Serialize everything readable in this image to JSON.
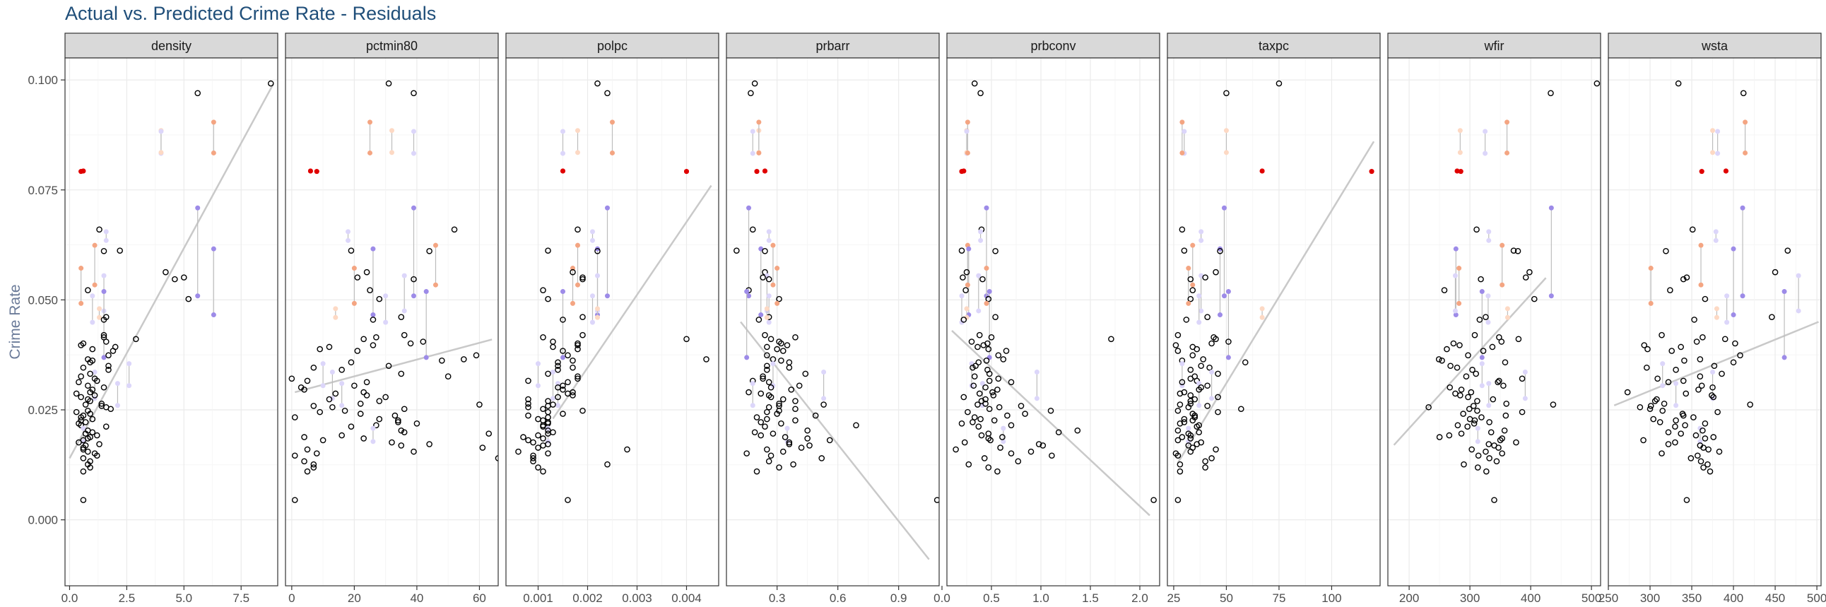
{
  "chart_data": {
    "type": "scatter",
    "title": "Actual vs. Predicted Crime Rate - Residuals",
    "xlabel": "",
    "ylabel": "Crime Rate",
    "ylim": [
      -0.015,
      0.105
    ],
    "y_ticks": [
      0.0,
      0.025,
      0.05,
      0.075,
      0.1
    ],
    "y_tick_labels": [
      "0.000",
      "0.025",
      "0.050",
      "0.075",
      "0.100"
    ],
    "grid": true,
    "highlight_colors": {
      "strong_positive": "#e00000",
      "positive": "#f4a582",
      "light_positive": "#fdd9c4",
      "negative": "#9d8be8",
      "light_negative": "#dcd6fa"
    },
    "fit_line_color": "#c9c9c9",
    "points_actual_crime_rate": [
      0.0992,
      0.097,
      0.0883,
      0.0835,
      0.0834,
      0.0793,
      0.0792,
      0.0709,
      0.066,
      0.0655,
      0.0616,
      0.0612,
      0.0611,
      0.0563,
      0.0555,
      0.0551,
      0.0547,
      0.0534,
      0.0522,
      0.0519,
      0.0509,
      0.0502,
      0.0492,
      0.0461,
      0.046,
      0.0455,
      0.042,
      0.0415,
      0.0411,
      0.0405,
      0.0401,
      0.0397,
      0.0393,
      0.0388,
      0.0384,
      0.0374,
      0.0365,
      0.0362,
      0.0358,
      0.0355,
      0.035,
      0.0346,
      0.0341,
      0.0336,
      0.0332,
      0.0326,
      0.0321,
      0.0316,
      0.0313,
      0.031,
      0.0305,
      0.0301,
      0.0296,
      0.029,
      0.0287,
      0.0283,
      0.0279,
      0.0274,
      0.027,
      0.0264,
      0.0262,
      0.0259,
      0.0256,
      0.0252,
      0.0248,
      0.0245,
      0.0241,
      0.0237,
      0.0233,
      0.0229,
      0.0226,
      0.0222,
      0.0219,
      0.0215,
      0.0212,
      0.0208,
      0.0203,
      0.0199,
      0.0196,
      0.0192,
      0.0188,
      0.0185,
      0.0181,
      0.0176,
      0.0172,
      0.0169,
      0.0164,
      0.016,
      0.0155,
      0.0151,
      0.0146,
      0.014,
      0.0133,
      0.0126,
      0.0119,
      0.011,
      0.0045
    ],
    "panels": [
      {
        "name": "density",
        "xlim": [
          -0.2,
          9.1
        ],
        "x_ticks": [
          0,
          2.5,
          5,
          7.5
        ],
        "x_tick_labels": [
          "0.0",
          "2.5",
          "5.0",
          "7.5"
        ],
        "fit_line": [
          [
            0.0,
            0.014
          ],
          [
            8.9,
            0.099
          ]
        ],
        "x": [
          8.8,
          5.6,
          4.0,
          4.0,
          6.3,
          0.6,
          0.5,
          5.6,
          1.3,
          1.6,
          6.3,
          2.2,
          1.5,
          4.2,
          1.5,
          5.0,
          4.6,
          1.1,
          0.8,
          1.5,
          1.0,
          5.2,
          0.5,
          1.6,
          1.3,
          1.5,
          1.5,
          1.5,
          2.9,
          1.6,
          0.6,
          0.5,
          2.0,
          1.0,
          1.9,
          1.7,
          0.8,
          1.0,
          0.9,
          2.6,
          1.7,
          0.6,
          1.7,
          1.1,
          0.9,
          0.5,
          1.1,
          1.2,
          0.4,
          2.1,
          0.8,
          1.5,
          1.0,
          0.9,
          0.3,
          1.1,
          0.5,
          0.8,
          0.9,
          1.4,
          0.7,
          1.4,
          1.6,
          1.8,
          0.8,
          0.3,
          0.9,
          0.6,
          0.5,
          1.0,
          0.5,
          0.7,
          0.4,
          0.5,
          1.6,
          0.6,
          0.8,
          1.0,
          0.7,
          1.2,
          0.9,
          0.8,
          0.6,
          0.4,
          1.3,
          0.7,
          0.6,
          0.6,
          0.8,
          1.1,
          1.2,
          0.6,
          0.9,
          0.8,
          0.9,
          0.6,
          0.6
        ]
      },
      {
        "name": "pctmin80",
        "xlim": [
          -2,
          66
        ],
        "x_ticks": [
          0,
          20,
          40,
          60
        ],
        "x_tick_labels": [
          "0",
          "20",
          "40",
          "60"
        ],
        "fit_line": [
          [
            1.0,
            0.029
          ],
          [
            64.0,
            0.041
          ]
        ],
        "x": [
          31.0,
          39.0,
          39.0,
          32.0,
          25.0,
          6.0,
          8.0,
          39.0,
          52.0,
          18.0,
          26.0,
          19.0,
          44.0,
          24.0,
          36.0,
          21.0,
          39.0,
          46.0,
          25.0,
          43.0,
          30.0,
          28.0,
          20.0,
          35.0,
          14.0,
          26.0,
          36.0,
          27.0,
          23.0,
          42.0,
          38.0,
          26.0,
          12.0,
          9.0,
          21.0,
          59.0,
          55.0,
          48.0,
          19.0,
          10.0,
          31.0,
          7.0,
          16.0,
          13.0,
          35.0,
          50.0,
          0.0,
          5.0,
          24.0,
          16.0,
          20.0,
          3.0,
          4.0,
          23.0,
          14.0,
          24.0,
          30.0,
          12.0,
          28.0,
          22.0,
          60.0,
          7.0,
          13.0,
          36.0,
          17.0,
          9.0,
          22.0,
          33.0,
          1.0,
          28.0,
          34.0,
          34.0,
          40.0,
          27.0,
          19.0,
          26.0,
          35.0,
          36.0,
          63.0,
          16.0,
          4.0,
          23.0,
          10.0,
          32.0,
          44.0,
          35.0,
          61.0,
          5.0,
          39.0,
          8.0,
          1.0,
          66.0,
          4.0,
          7.0,
          7.0,
          5.0,
          1.0
        ]
      },
      {
        "name": "polpc",
        "xlim": [
          0.00035,
          0.00465
        ],
        "x_ticks": [
          0.001,
          0.002,
          0.003,
          0.004
        ],
        "x_tick_labels": [
          "0.001",
          "0.002",
          "0.003",
          "0.004"
        ],
        "fit_line": [
          [
            0.0013,
            0.023
          ],
          [
            0.0045,
            0.076
          ]
        ],
        "x": [
          0.0022,
          0.0024,
          0.0015,
          0.0018,
          0.0025,
          0.0015,
          0.004,
          0.0024,
          0.0018,
          0.0021,
          0.0022,
          0.0012,
          0.0022,
          0.0017,
          0.0022,
          0.0019,
          0.0019,
          0.0018,
          0.0011,
          0.0015,
          0.0021,
          0.0012,
          0.0017,
          0.0019,
          0.0022,
          0.0015,
          0.0019,
          0.0011,
          0.004,
          0.0013,
          0.0018,
          0.0018,
          0.0013,
          0.0018,
          0.0015,
          0.0016,
          0.0044,
          0.0017,
          0.0014,
          0.001,
          0.0014,
          0.0017,
          0.0014,
          0.0013,
          0.0012,
          0.0018,
          0.0018,
          0.0008,
          0.0016,
          0.0014,
          0.0015,
          0.0014,
          0.0015,
          0.0017,
          0.0016,
          0.0017,
          0.0014,
          0.0008,
          0.0012,
          0.0008,
          0.0013,
          0.0012,
          0.0008,
          0.0011,
          0.0019,
          0.0012,
          0.0015,
          0.0008,
          0.0012,
          0.001,
          0.0011,
          0.0012,
          0.0012,
          0.0011,
          0.0011,
          0.0012,
          0.0012,
          0.0013,
          0.0012,
          0.001,
          0.0007,
          0.0011,
          0.0008,
          0.0009,
          0.0012,
          0.0011,
          0.001,
          0.0028,
          0.0006,
          0.0012,
          0.0009,
          0.0009,
          0.0009,
          0.0024,
          0.001,
          0.0011,
          0.0016
        ]
      },
      {
        "name": "prbarr",
        "xlim": [
          0.05,
          1.1
        ],
        "x_ticks": [
          0.3,
          0.6,
          0.9
        ],
        "x_tick_labels": [
          "0.3",
          "0.6",
          "0.9"
        ],
        "fit_line": [
          [
            0.12,
            0.045
          ],
          [
            1.05,
            -0.009
          ]
        ],
        "x": [
          0.19,
          0.17,
          0.18,
          0.21,
          0.21,
          0.24,
          0.2,
          0.16,
          0.18,
          0.26,
          0.22,
          0.1,
          0.24,
          0.24,
          0.25,
          0.23,
          0.26,
          0.28,
          0.16,
          0.15,
          0.26,
          0.31,
          0.3,
          0.26,
          0.25,
          0.21,
          0.24,
          0.39,
          0.27,
          0.31,
          0.32,
          0.35,
          0.25,
          0.3,
          0.33,
          0.25,
          0.28,
          0.32,
          0.36,
          0.28,
          0.25,
          0.36,
          0.25,
          0.53,
          0.44,
          0.23,
          0.23,
          0.18,
          0.26,
          0.18,
          0.41,
          0.27,
          0.37,
          0.16,
          0.22,
          0.26,
          0.27,
          0.33,
          0.39,
          0.31,
          0.53,
          0.31,
          0.26,
          0.39,
          0.31,
          0.25,
          0.3,
          0.49,
          0.2,
          0.25,
          0.39,
          0.22,
          0.32,
          0.69,
          0.24,
          0.35,
          0.45,
          0.19,
          0.28,
          0.22,
          0.34,
          0.45,
          0.56,
          0.36,
          0.36,
          0.46,
          0.42,
          0.25,
          0.33,
          0.15,
          0.27,
          0.52,
          0.26,
          0.38,
          0.31,
          0.2,
          1.09
        ]
      },
      {
        "name": "prbconv",
        "xlim": [
          0.05,
          2.2
        ],
        "x_ticks": [
          0,
          0.5,
          1.0,
          1.5,
          2.0
        ],
        "x_tick_labels": [
          "0.0",
          "0.5",
          "1.0",
          "1.5",
          "2.0"
        ],
        "fit_line": [
          [
            0.1,
            0.043
          ],
          [
            2.1,
            0.001
          ]
        ],
        "x": [
          0.33,
          0.39,
          0.25,
          0.25,
          0.26,
          0.22,
          0.2,
          0.45,
          0.4,
          0.39,
          0.27,
          0.2,
          0.54,
          0.25,
          0.37,
          0.21,
          0.41,
          0.26,
          0.24,
          0.48,
          0.2,
          0.47,
          0.45,
          0.54,
          0.25,
          0.22,
          0.38,
          0.5,
          1.71,
          0.3,
          0.46,
          0.42,
          0.36,
          0.47,
          0.65,
          0.57,
          0.62,
          0.45,
          0.37,
          0.3,
          0.34,
          0.31,
          0.46,
          0.96,
          0.48,
          0.33,
          0.57,
          0.48,
          0.7,
          0.41,
          0.32,
          0.44,
          0.56,
          0.51,
          0.38,
          0.52,
          0.22,
          0.44,
          0.4,
          0.44,
          0.36,
          0.8,
          0.58,
          0.48,
          1.1,
          0.26,
          0.84,
          0.66,
          0.33,
          0.39,
          0.53,
          0.31,
          0.2,
          0.7,
          0.37,
          0.62,
          1.37,
          1.18,
          0.47,
          0.4,
          0.61,
          0.47,
          0.49,
          0.23,
          0.98,
          1.02,
          0.59,
          0.14,
          0.9,
          0.7,
          1.11,
          0.43,
          0.77,
          0.27,
          0.47,
          0.56,
          2.14
        ]
      },
      {
        "name": "taxpc",
        "xlim": [
          22,
          123
        ],
        "x_ticks": [
          25,
          50,
          75,
          100
        ],
        "x_tick_labels": [
          "25",
          "50",
          "75",
          "100"
        ],
        "fit_line": [
          [
            27.0,
            0.013
          ],
          [
            120.0,
            0.086
          ]
        ],
        "x": [
          75.0,
          50.0,
          30.0,
          50.0,
          29.0,
          67.0,
          119.0,
          49.0,
          29.0,
          38.0,
          47.0,
          30.0,
          47.0,
          45.0,
          38.0,
          40.0,
          33.0,
          34.0,
          34.0,
          51.0,
          37.0,
          33.0,
          32.0,
          41.0,
          67.0,
          31.0,
          27.0,
          44.0,
          45.0,
          51.0,
          43.0,
          26.0,
          34.0,
          36.0,
          27.0,
          34.0,
          39.0,
          29.0,
          59.0,
          29.0,
          38.0,
          42.0,
          33.0,
          43.0,
          46.0,
          35.0,
          33.0,
          36.0,
          29.0,
          37.0,
          41.0,
          38.0,
          37.0,
          30.0,
          28.0,
          33.0,
          46.0,
          35.0,
          33.0,
          33.0,
          28.0,
          41.0,
          32.0,
          57.0,
          27.0,
          46.0,
          34.0,
          35.0,
          35.0,
          30.0,
          34.0,
          30.0,
          28.0,
          37.0,
          36.0,
          32.0,
          27.0,
          37.0,
          32.0,
          33.0,
          29.0,
          33.0,
          27.0,
          38.0,
          36.0,
          32.0,
          34.0,
          45.0,
          33.0,
          26.0,
          27.0,
          43.0,
          40.0,
          28.0,
          40.0,
          28.0,
          27.0
        ]
      },
      {
        "name": "wfir",
        "xlim": [
          165,
          515
        ],
        "x_ticks": [
          200,
          300,
          400,
          500
        ],
        "x_tick_labels": [
          "200",
          "300",
          "400",
          "500"
        ],
        "fit_line": [
          [
            175.0,
            0.017
          ],
          [
            425.0,
            0.055
          ]
        ],
        "x": [
          509.0,
          433.0,
          325.0,
          284.0,
          361.0,
          279.0,
          285.0,
          434.0,
          311.0,
          331.0,
          277.0,
          372.0,
          379.0,
          398.0,
          276.0,
          392.0,
          318.0,
          353.0,
          258.0,
          320.0,
          330.0,
          406.0,
          282.0,
          326.0,
          362.0,
          316.0,
          308.0,
          348.0,
          380.0,
          352.0,
          273.0,
          283.0,
          337.0,
          262.0,
          322.0,
          297.0,
          249.0,
          254.0,
          358.0,
          320.0,
          268.0,
          279.0,
          304.0,
          391.0,
          310.0,
          294.0,
          386.0,
          348.0,
          346.0,
          331.0,
          355.0,
          267.0,
          286.0,
          302.0,
          276.0,
          284.0,
          297.0,
          338.0,
          312.0,
          360.0,
          437.0,
          306.0,
          232.0,
          299.0,
          312.0,
          386.0,
          289.0,
          359.0,
          319.0,
          300.0,
          308.0,
          332.0,
          307.0,
          280.0,
          296.0,
          313.0,
          357.0,
          335.0,
          286.0,
          266.0,
          250.0,
          353.0,
          350.0,
          376.0,
          331.0,
          340.0,
          347.0,
          303.0,
          326.0,
          353.0,
          314.0,
          332.0,
          344.0,
          290.0,
          313.0,
          327.0,
          340.0
        ]
      },
      {
        "name": "wsta",
        "xlim": [
          250,
          505
        ],
        "x_ticks": [
          250,
          300,
          350,
          400,
          450,
          500
        ],
        "x_tick_labels": [
          "250",
          "300",
          "350",
          "400",
          "450",
          "500"
        ],
        "fit_line": [
          [
            257.0,
            0.026
          ],
          [
            502.0,
            0.045
          ]
        ],
        "x": [
          334.0,
          412.0,
          381.0,
          375.0,
          414.0,
          391.0,
          362.0,
          411.0,
          351.0,
          379.0,
          400.0,
          465.0,
          319.0,
          450.0,
          478.0,
          344.0,
          340.0,
          361.0,
          324.0,
          461.0,
          392.0,
          366.0,
          301.0,
          446.0,
          380.0,
          353.0,
          314.0,
          363.0,
          390.0,
          356.0,
          402.0,
          293.0,
          337.0,
          297.0,
          326.0,
          408.0,
          360.0,
          341.0,
          400.0,
          315.0,
          377.0,
          296.0,
          331.0,
          375.0,
          386.0,
          360.0,
          309.0,
          340.0,
          322.0,
          331.0,
          362.0,
          375.0,
          358.0,
          273.0,
          343.0,
          374.0,
          376.0,
          308.0,
          306.0,
          317.0,
          420.0,
          301.0,
          288.0,
          300.0,
          315.0,
          381.0,
          339.0,
          340.0,
          352.0,
          304.0,
          331.0,
          312.0,
          366.0,
          342.0,
          330.0,
          360.0,
          363.0,
          322.0,
          337.0,
          355.0,
          376.0,
          366.0,
          292.0,
          330.0,
          322.0,
          360.0,
          364.0,
          370.0,
          383.0,
          314.0,
          357.0,
          349.0,
          361.0,
          369.0,
          364.0,
          372.0,
          344.0
        ]
      }
    ],
    "predicted_offsets": [
      0.0,
      0.0,
      -0.005,
      0.005,
      0.007,
      0.0,
      0.0,
      -0.02,
      0.0,
      -0.002,
      -0.015,
      0.0,
      0.0,
      0.0,
      -0.008,
      0.0,
      0.0,
      0.009,
      0.0,
      -0.015,
      -0.006,
      0.0,
      0.008,
      0.0,
      0.002,
      0.0,
      0.0,
      0.0,
      0.0,
      0.0,
      0.0,
      0.0,
      0.0,
      0.0,
      0.0,
      0.0,
      0.0,
      0.0,
      0.0,
      -0.005,
      0.0,
      0.0,
      0.0,
      -0.006,
      0.0,
      0.0,
      0.0,
      0.0,
      0.0,
      -0.005,
      0.0,
      0.0,
      0.0,
      0.0,
      0.0,
      0.0,
      0.0,
      0.0,
      0.0,
      0.0,
      0.0,
      0.0,
      0.0,
      0.0,
      0.0,
      0.0,
      0.0,
      0.0,
      0.0,
      0.0,
      0.0,
      0.0,
      0.0,
      0.0,
      0.0,
      -0.003,
      0.0,
      0.0,
      0.0,
      0.0,
      0.0,
      0.0,
      0.0,
      0.0,
      0.0,
      0.0,
      0.0,
      0.0,
      0.0,
      0.0,
      0.0,
      0.0,
      0.0,
      0.0,
      0.0,
      0.0,
      0.0
    ]
  }
}
